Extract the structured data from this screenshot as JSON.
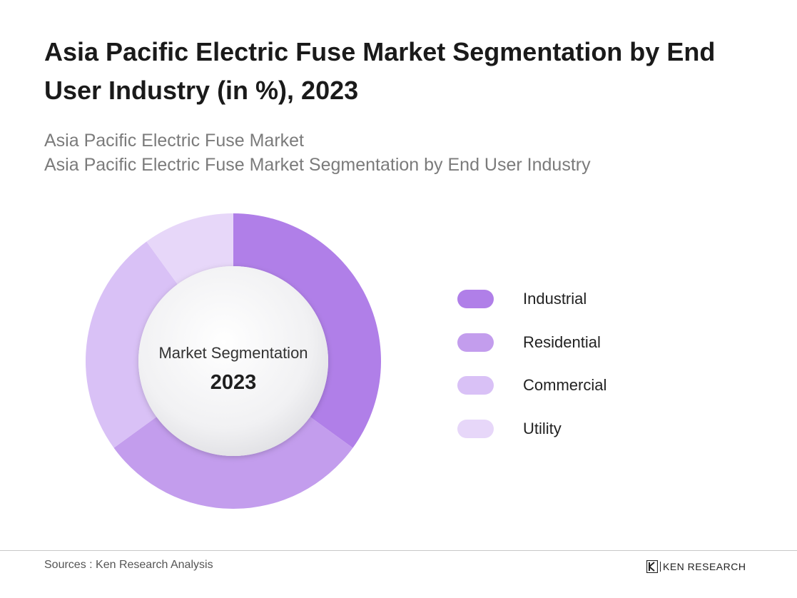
{
  "header": {
    "title": "Asia Pacific Electric Fuse Market Segmentation by End User Industry (in %), 2023",
    "subtitle_line1": "Asia Pacific Electric Fuse Market",
    "subtitle_line2": "Asia Pacific Electric Fuse Market Segmentation by End User Industry"
  },
  "chart_data": {
    "type": "pie",
    "variant": "donut",
    "center_label": "Market Segmentation",
    "center_year": "2023",
    "categories": [
      "Industrial",
      "Residential",
      "Commercial",
      "Utility"
    ],
    "values": [
      35,
      30,
      25,
      10
    ],
    "colors": [
      "#b07fe8",
      "#c39ded",
      "#d9c1f6",
      "#e7d7f9"
    ],
    "legend_position": "right"
  },
  "footer": {
    "source": "Sources : Ken Research Analysis",
    "brand": "KEN RESEARCH"
  }
}
